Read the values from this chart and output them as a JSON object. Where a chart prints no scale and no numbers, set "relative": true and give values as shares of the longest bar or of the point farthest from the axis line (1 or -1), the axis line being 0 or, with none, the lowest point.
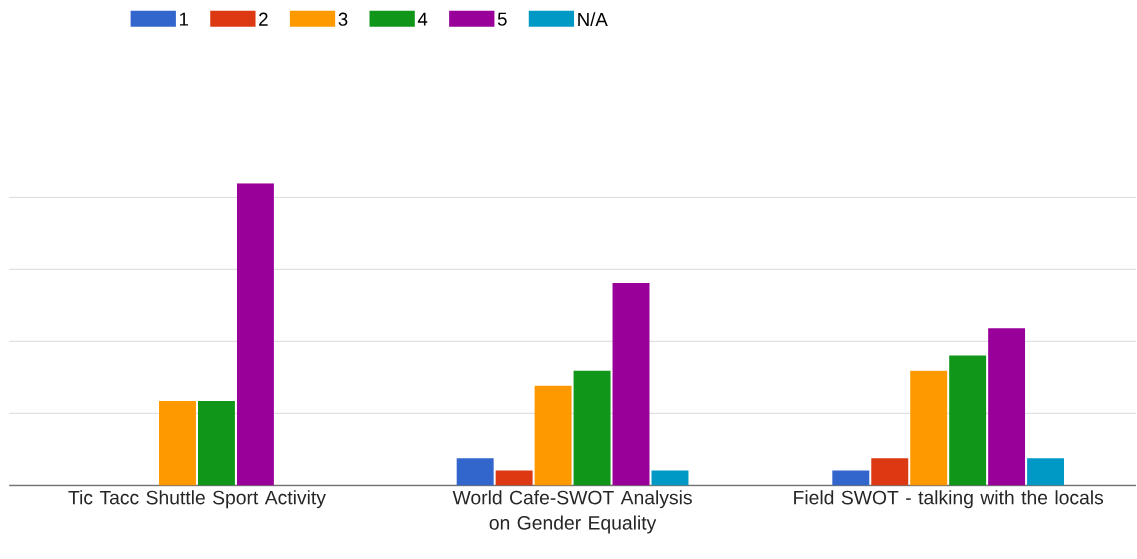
{
  "chart_data": {
    "type": "bar",
    "relative": true,
    "grid": true,
    "legend": "top",
    "categories": [
      "Tic Tacc Shuttle Sport Activity",
      "World Cafe-SWOT Analysis on Gender Equality",
      "Field SWOT - talking with the locals"
    ],
    "series": [
      {
        "name": "1",
        "color": "#3366cc",
        "values": [
          0,
          0.09,
          0.05
        ]
      },
      {
        "name": "2",
        "color": "#dc3912",
        "values": [
          0,
          0.05,
          0.09
        ]
      },
      {
        "name": "3",
        "color": "#ff9900",
        "values": [
          0.28,
          0.33,
          0.38
        ]
      },
      {
        "name": "4",
        "color": "#109618",
        "values": [
          0.28,
          0.38,
          0.43
        ]
      },
      {
        "name": "5",
        "color": "#990099",
        "values": [
          1,
          0.67,
          0.52
        ]
      },
      {
        "name": "N/A",
        "color": "#0099c6",
        "values": [
          0,
          0.05,
          0.09
        ]
      }
    ]
  }
}
